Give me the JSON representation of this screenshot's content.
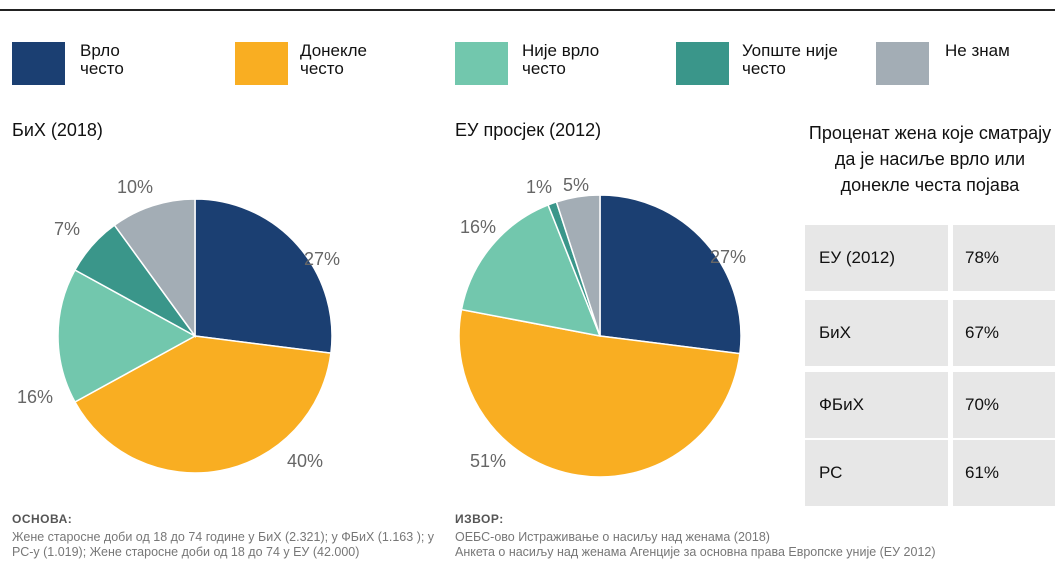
{
  "chart_data": [
    {
      "type": "pie",
      "title": "БиХ (2018)",
      "categories": [
        "Врло често",
        "Донекле често",
        "Није врло често",
        "Уопште није често",
        "Не знам"
      ],
      "values": [
        27,
        40,
        16,
        7,
        10
      ],
      "value_labels": [
        "27%",
        "40%",
        "16%",
        "7%",
        "10%"
      ],
      "colors": [
        "#1b3f72",
        "#f9ae22",
        "#72c7ad",
        "#3a968a",
        "#a3adb5"
      ]
    },
    {
      "type": "pie",
      "title": "ЕУ просјек (2012)",
      "categories": [
        "Врло често",
        "Донекле често",
        "Није врло често",
        "Уопште није често",
        "Не знам"
      ],
      "values": [
        27,
        51,
        16,
        1,
        5
      ],
      "value_labels": [
        "27%",
        "51%",
        "16%",
        "1%",
        "5%"
      ],
      "colors": [
        "#1b3f72",
        "#f9ae22",
        "#72c7ad",
        "#3a968a",
        "#a3adb5"
      ]
    }
  ],
  "table": {
    "title": "Проценат жена које сматрају да је насиље врло или донекле честа појава",
    "rows": [
      [
        "ЕУ (2012)",
        "78%"
      ],
      [
        "БиХ",
        "67%"
      ],
      [
        "ФБиХ",
        "70%"
      ],
      [
        "РС",
        "61%"
      ]
    ]
  },
  "notes": {
    "basis_title": "ОСНОВА:",
    "basis_text": "Жене старосне доби од 18 до 74 године у БиХ (2.321); у ФБиХ (1.163 ); у РС-у (1.019); Жене старосне доби од 18 до 74 у ЕУ (42.000)",
    "source_title": "ИЗВОР:",
    "source_lines": [
      "ОЕБС-ово Истраживање о насиљу над женама (2018)",
      "Анкета о насиљу над женама Агенције за основна права Европске уније (ЕУ 2012)"
    ]
  }
}
